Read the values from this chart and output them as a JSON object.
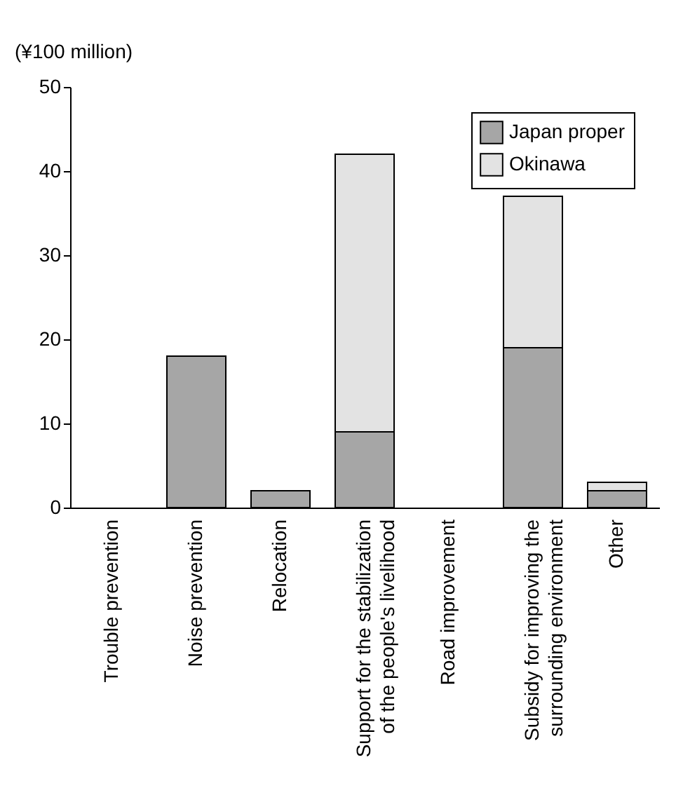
{
  "chart_data": {
    "type": "bar",
    "stacked": true,
    "ylabel": "(¥100 million)",
    "categories": [
      "Trouble prevention",
      "Noise prevention",
      "Relocation",
      "Support for the stabilization\nof the people's livelihood",
      "Road improvement",
      "Subsidy for improving the\nsurrounding environment",
      "Other"
    ],
    "series": [
      {
        "name": "Japan proper",
        "color": "#a6a6a6",
        "values": [
          0,
          18,
          2,
          9,
          0,
          19,
          2
        ]
      },
      {
        "name": "Okinawa",
        "color": "#e3e3e3",
        "values": [
          0,
          0,
          0,
          33,
          0,
          18,
          1
        ]
      }
    ],
    "ylim": [
      0,
      50
    ],
    "yticks": [
      0,
      10,
      20,
      30,
      40,
      50
    ],
    "grid": false,
    "legend": "top right"
  }
}
